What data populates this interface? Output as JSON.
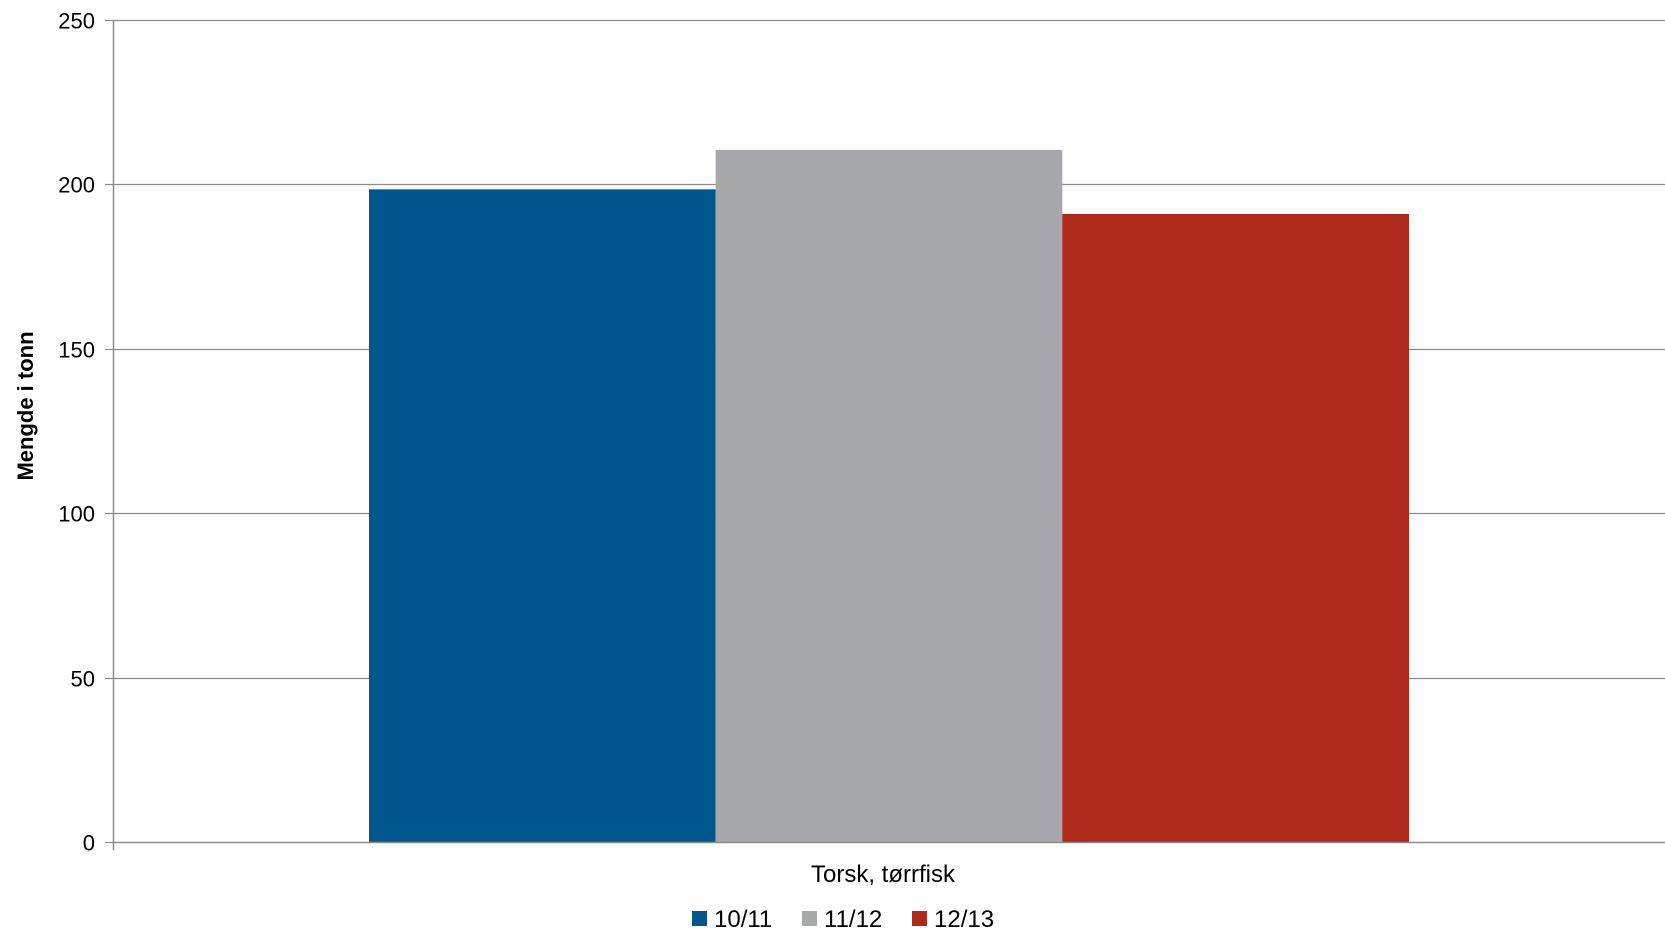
{
  "chart_data": {
    "type": "bar",
    "title": "",
    "xlabel": "",
    "ylabel": "Mengde i tonn",
    "categories": [
      "Torsk, tørrfisk"
    ],
    "series": [
      {
        "name": "10/11",
        "values": [
          198.5
        ],
        "color": "#00578d"
      },
      {
        "name": "11/12",
        "values": [
          210.5
        ],
        "color": "#a7a8ac"
      },
      {
        "name": "12/13",
        "values": [
          191
        ],
        "color": "#b0291d"
      }
    ],
    "ylim": [
      0,
      250
    ],
    "yticks": [
      "0",
      "50",
      "100",
      "150",
      "200",
      "250"
    ],
    "grid": true,
    "legend_position": "bottom"
  }
}
